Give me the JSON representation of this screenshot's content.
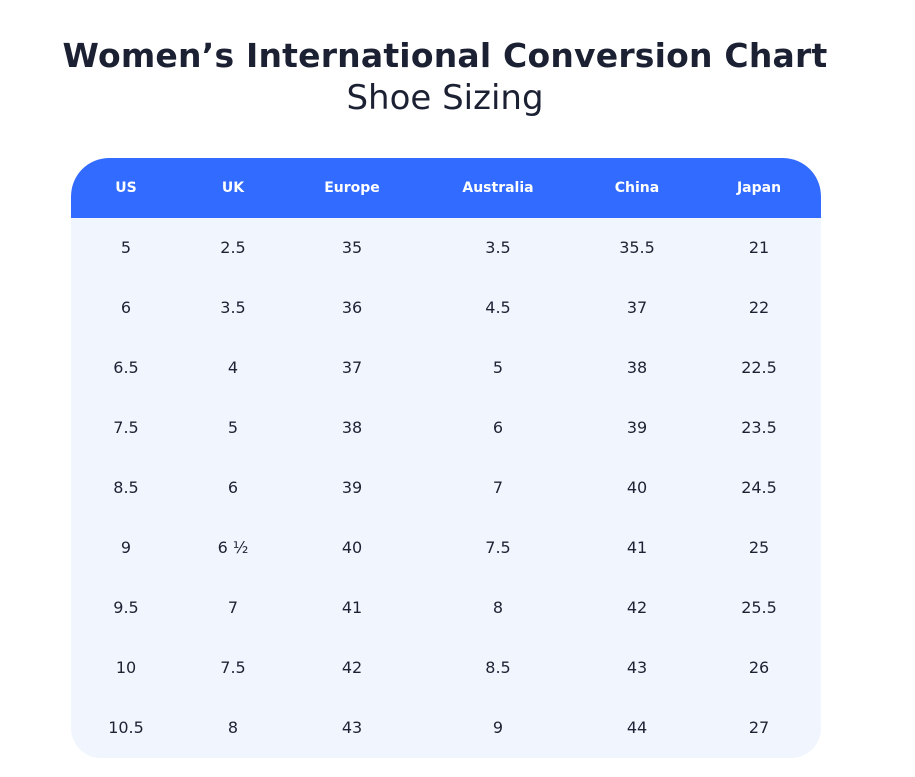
{
  "heading": {
    "title": "Women’s International Conversion Chart",
    "subtitle": "Shoe Sizing"
  },
  "table": {
    "columns": [
      "US",
      "UK",
      "Europe",
      "Australia",
      "China",
      "Japan"
    ],
    "rows": [
      [
        "5",
        "2.5",
        "35",
        "3.5",
        "35.5",
        "21"
      ],
      [
        "6",
        "3.5",
        "36",
        "4.5",
        "37",
        "22"
      ],
      [
        "6.5",
        "4",
        "37",
        "5",
        "38",
        "22.5"
      ],
      [
        "7.5",
        "5",
        "38",
        "6",
        "39",
        "23.5"
      ],
      [
        "8.5",
        "6",
        "39",
        "7",
        "40",
        "24.5"
      ],
      [
        "9",
        "6 ½",
        "40",
        "7.5",
        "41",
        "25"
      ],
      [
        "9.5",
        "7",
        "41",
        "8",
        "42",
        "25.5"
      ],
      [
        "10",
        "7.5",
        "42",
        "8.5",
        "43",
        "26"
      ],
      [
        "10.5",
        "8",
        "43",
        "9",
        "44",
        "27"
      ]
    ]
  },
  "colors": {
    "header_bg": "#326bff",
    "body_bg": "#f1f5fe",
    "text": "#1e2233",
    "header_text": "#ffffff"
  }
}
